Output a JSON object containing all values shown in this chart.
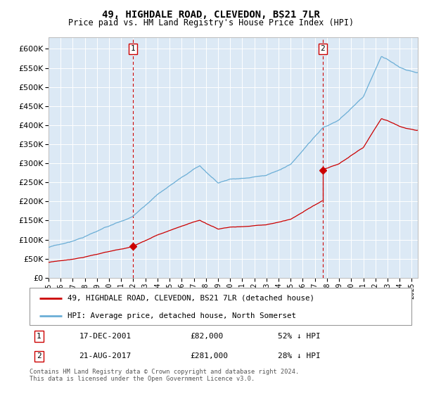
{
  "title": "49, HIGHDALE ROAD, CLEVEDON, BS21 7LR",
  "subtitle": "Price paid vs. HM Land Registry's House Price Index (HPI)",
  "bg_color": "#dce9f5",
  "hpi_color": "#6baed6",
  "price_color": "#cc0000",
  "vline_color": "#cc0000",
  "ylabel_vals": [
    0,
    50000,
    100000,
    150000,
    200000,
    250000,
    300000,
    350000,
    400000,
    450000,
    500000,
    550000,
    600000
  ],
  "ylim": [
    0,
    630000
  ],
  "xlim_start": 1995.0,
  "xlim_end": 2025.5,
  "purchase1_date": 2001.96,
  "purchase1_price": 82000,
  "purchase2_date": 2017.64,
  "purchase2_price": 281000,
  "legend_line1": "49, HIGHDALE ROAD, CLEVEDON, BS21 7LR (detached house)",
  "legend_line2": "HPI: Average price, detached house, North Somerset",
  "annot1_label": "1",
  "annot1_date": "17-DEC-2001",
  "annot1_price": "£82,000",
  "annot1_hpi": "52% ↓ HPI",
  "annot2_label": "2",
  "annot2_date": "21-AUG-2017",
  "annot2_price": "£281,000",
  "annot2_hpi": "28% ↓ HPI",
  "footer": "Contains HM Land Registry data © Crown copyright and database right 2024.\nThis data is licensed under the Open Government Licence v3.0."
}
